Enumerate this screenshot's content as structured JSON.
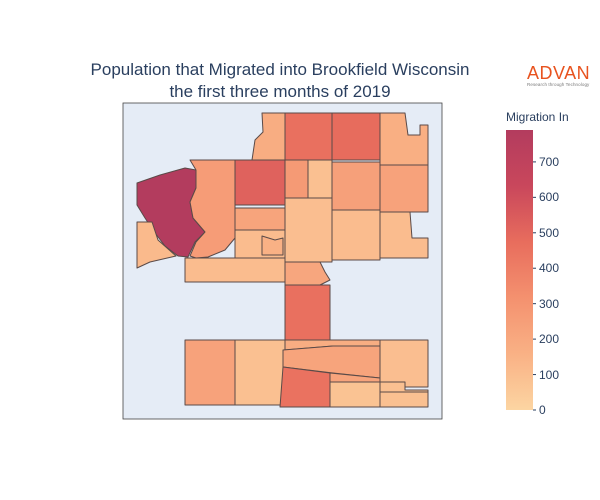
{
  "title_line1": "Population that Migrated into Brookfield Wisconsin",
  "title_line2": "the first three months of 2019",
  "logo": {
    "name": "ADVAN",
    "tagline": "Research through Technology"
  },
  "colorbar": {
    "title": "Migration In",
    "min": 0,
    "max": 790,
    "ticks": [
      "0",
      "100",
      "200",
      "300",
      "400",
      "500",
      "600",
      "700"
    ],
    "colors": [
      "#fcd5a2",
      "#f9b185",
      "#f4916f",
      "#e86d5d",
      "#c9475c",
      "#b33c5e"
    ]
  },
  "regions": [
    {
      "id": "northwest-tract",
      "value": 790
    },
    {
      "id": "west-low-tract",
      "value": 120
    },
    {
      "id": "west-tract",
      "value": 260
    },
    {
      "id": "north-central-tract",
      "value": 520
    },
    {
      "id": "north-center-small",
      "value": 270
    },
    {
      "id": "north-center-narrow",
      "value": 90
    },
    {
      "id": "north-top-left",
      "value": 180
    },
    {
      "id": "north-top-middle",
      "value": 460
    },
    {
      "id": "north-top-right",
      "value": 480
    },
    {
      "id": "northeast-small",
      "value": 170
    },
    {
      "id": "east-mid",
      "value": 240
    },
    {
      "id": "east-far",
      "value": 230
    },
    {
      "id": "center-left-a",
      "value": 220
    },
    {
      "id": "center-left-b",
      "value": 110
    },
    {
      "id": "center-left-c",
      "value": 160
    },
    {
      "id": "center-large",
      "value": 100
    },
    {
      "id": "center-right",
      "value": 110
    },
    {
      "id": "east-low",
      "value": 110
    },
    {
      "id": "south-strip-west",
      "value": 110
    },
    {
      "id": "south-strip-center",
      "value": 210
    },
    {
      "id": "corridor",
      "value": 460
    },
    {
      "id": "south-west",
      "value": 230
    },
    {
      "id": "south-mid-left",
      "value": 90
    },
    {
      "id": "south-band-top",
      "value": 180
    },
    {
      "id": "south-band-mid",
      "value": 220
    },
    {
      "id": "south-lower",
      "value": 450
    },
    {
      "id": "south-east-a",
      "value": 220
    },
    {
      "id": "south-east-b",
      "value": 100
    },
    {
      "id": "south-bottom-a",
      "value": 80
    },
    {
      "id": "south-bottom-b",
      "value": 90
    },
    {
      "id": "south-bottom-c",
      "value": 90
    }
  ]
}
